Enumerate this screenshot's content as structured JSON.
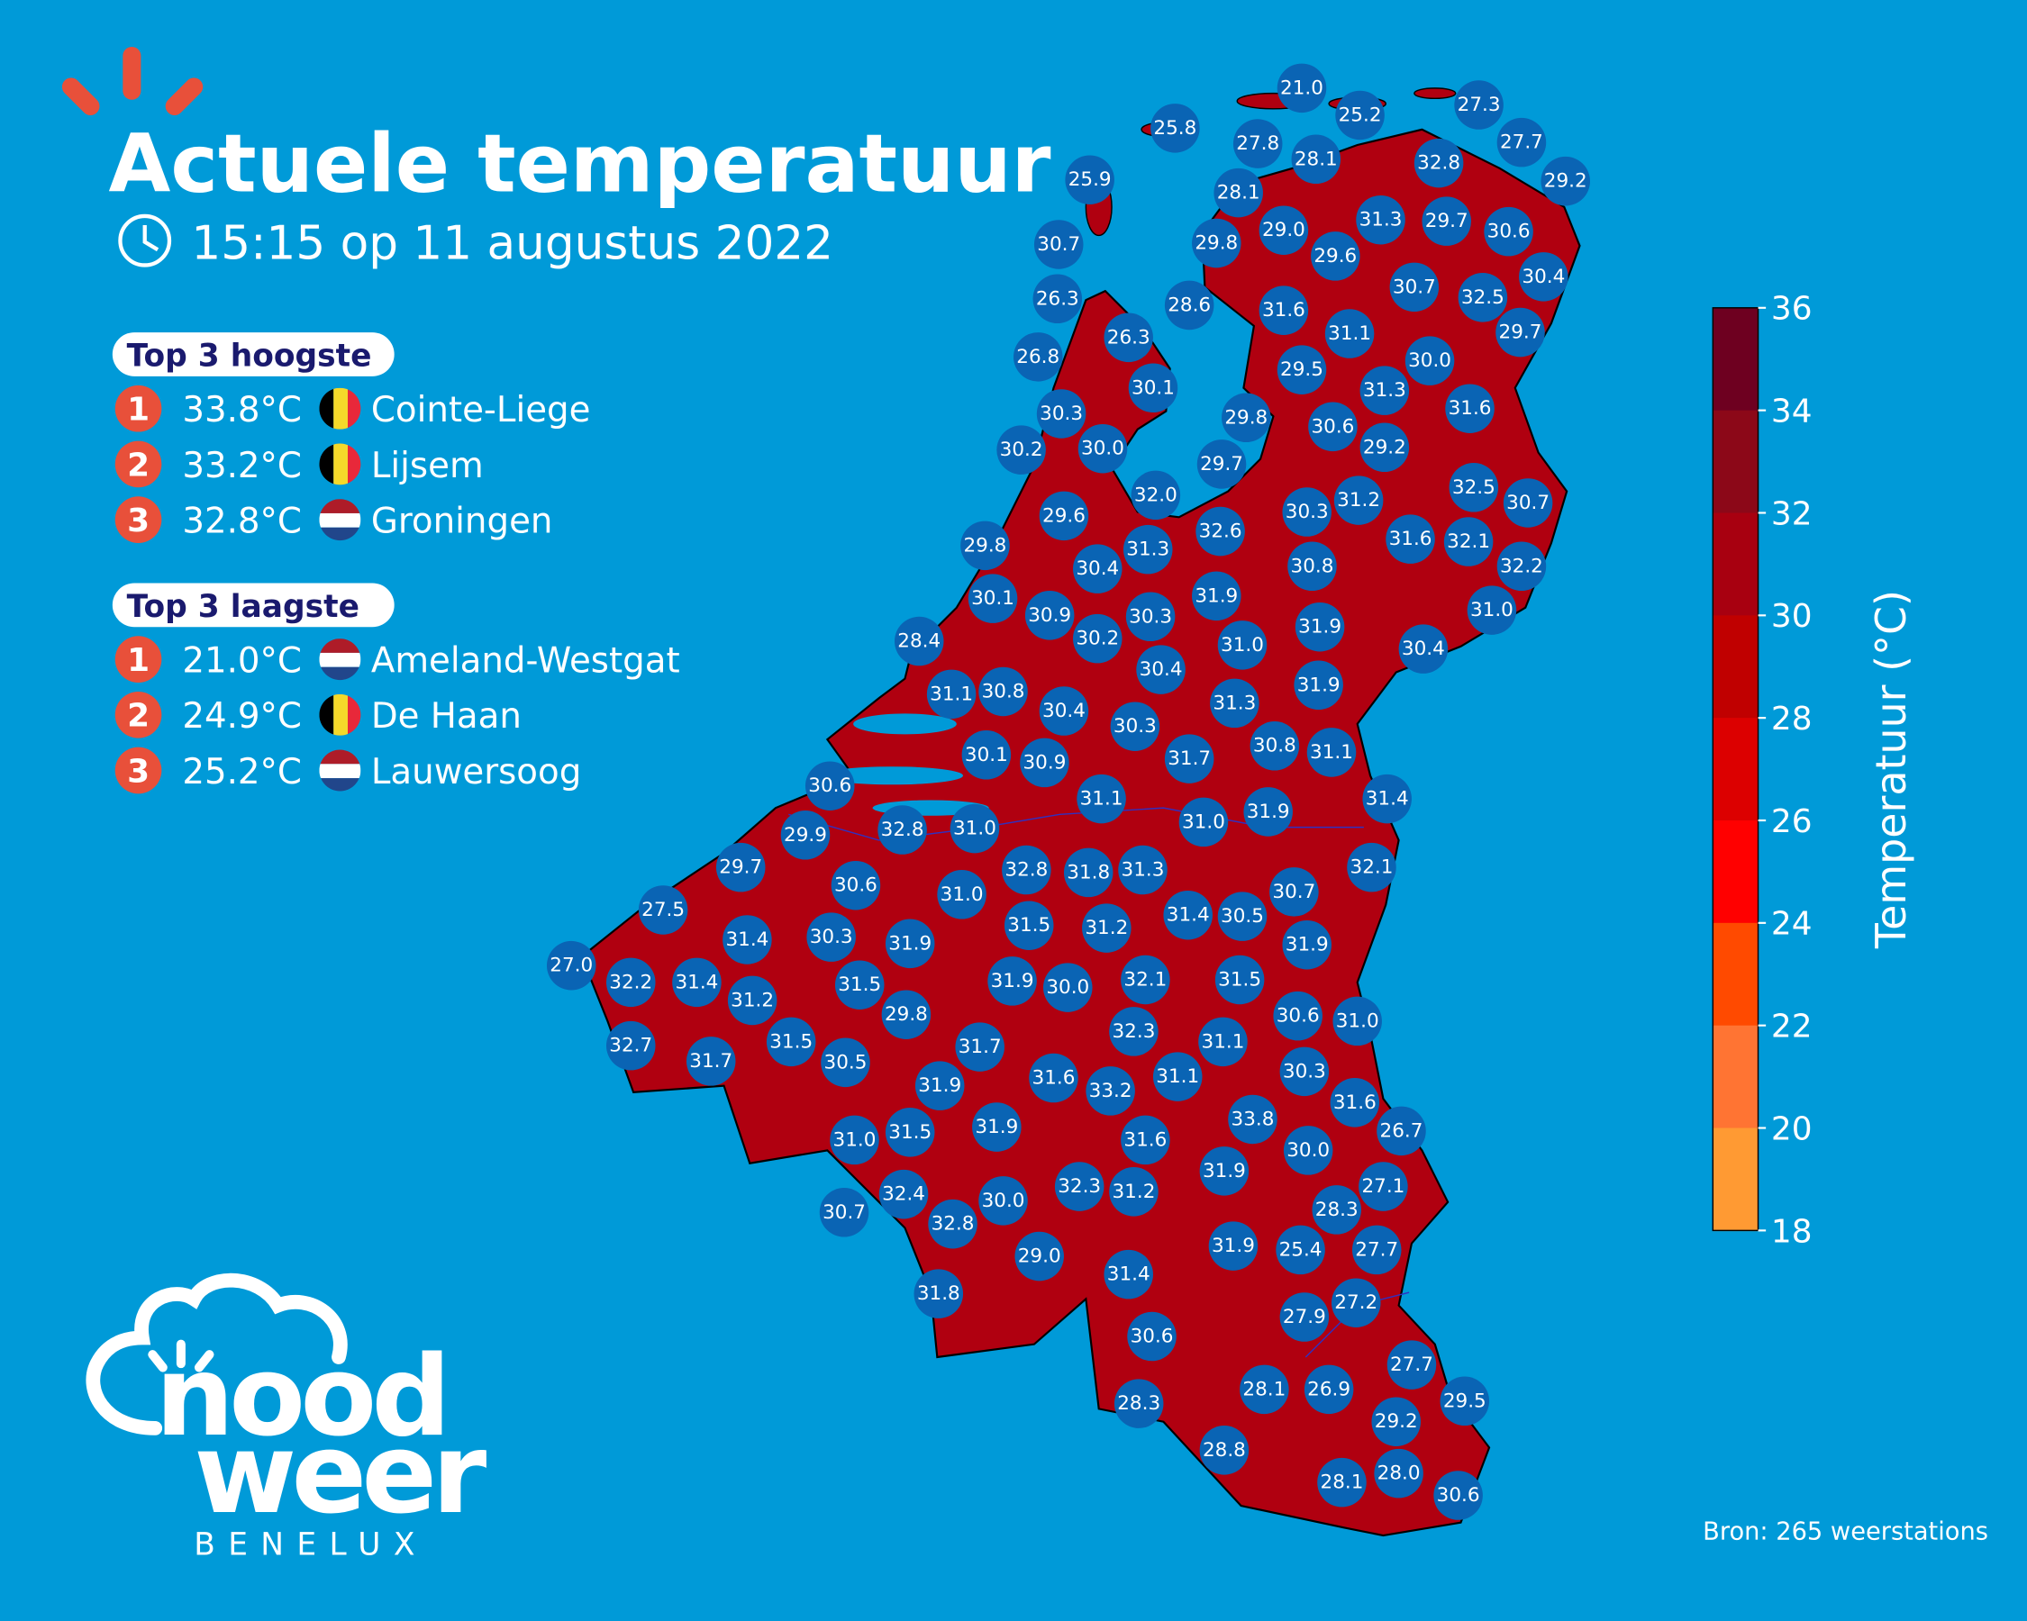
{
  "header": {
    "title": "Actuele temperatuur",
    "timestamp": "15:15 op 11 augustus 2022"
  },
  "top_high": {
    "heading": "Top 3 hoogste",
    "items": [
      {
        "rank": "1",
        "temp": "33.8°C",
        "country": "BE",
        "station": "Cointe-Liege"
      },
      {
        "rank": "2",
        "temp": "33.2°C",
        "country": "BE",
        "station": "Lijsem"
      },
      {
        "rank": "3",
        "temp": "32.8°C",
        "country": "NL",
        "station": "Groningen"
      }
    ]
  },
  "top_low": {
    "heading": "Top 3 laagste",
    "items": [
      {
        "rank": "1",
        "temp": "21.0°C",
        "country": "NL",
        "station": "Ameland-Westgat"
      },
      {
        "rank": "2",
        "temp": "24.9°C",
        "country": "BE",
        "station": "De Haan"
      },
      {
        "rank": "3",
        "temp": "25.2°C",
        "country": "NL",
        "station": "Lauwersoog"
      }
    ]
  },
  "colorbar": {
    "title": "Temperatuur (°C)",
    "ticks": [
      "36",
      "34",
      "32",
      "30",
      "28",
      "26",
      "24",
      "22",
      "20",
      "18"
    ],
    "colors": [
      "#6e0020",
      "#8c0818",
      "#a80010",
      "#c00000",
      "#dc0000",
      "#ff0000",
      "#ff4a00",
      "#ff7433",
      "#ff9a33"
    ]
  },
  "source": "Bron: 265 weerstations",
  "logo": {
    "line1": "nood",
    "line2": "weer",
    "line3": "BENELUX"
  },
  "colors": {
    "background": "#009ad8",
    "station_marker": "#0a64b4",
    "rank_badge": "#e8503a",
    "heading_text": "#1a1a6e",
    "land": "#b00010"
  },
  "stations": [
    "21.0",
    "25.2",
    "27.3",
    "25.8",
    "27.8",
    "28.1",
    "32.8",
    "27.7",
    "29.2",
    "25.9",
    "28.1",
    "29.0",
    "31.3",
    "29.7",
    "30.6",
    "30.7",
    "29.8",
    "29.6",
    "30.7",
    "32.5",
    "30.4",
    "26.3",
    "28.6",
    "31.6",
    "31.1",
    "26.3",
    "29.7",
    "26.8",
    "29.5",
    "30.0",
    "30.1",
    "31.3",
    "31.6",
    "30.3",
    "29.8",
    "30.6",
    "30.2",
    "30.0",
    "29.2",
    "29.7",
    "32.0",
    "30.3",
    "31.2",
    "32.5",
    "30.7",
    "29.6",
    "32.6",
    "29.8",
    "31.3",
    "31.6",
    "32.1",
    "32.2",
    "30.4",
    "30.8",
    "30.1",
    "31.9",
    "30.9",
    "30.3",
    "31.0",
    "31.9",
    "30.2",
    "31.0",
    "28.4",
    "30.4",
    "30.4",
    "31.9",
    "31.1",
    "30.8",
    "30.4",
    "31.3",
    "30.3",
    "30.8",
    "31.1",
    "30.1",
    "30.9",
    "31.7",
    "30.6",
    "31.1",
    "31.4",
    "31.0",
    "31.9",
    "29.9",
    "32.8",
    "31.0",
    "29.7",
    "32.8",
    "31.8",
    "31.3",
    "32.1",
    "30.6",
    "31.0",
    "30.7",
    "27.5",
    "31.4",
    "30.5",
    "31.5",
    "31.2",
    "31.4",
    "30.3",
    "31.9",
    "31.9",
    "27.0",
    "32.2",
    "31.4",
    "31.5",
    "31.9",
    "30.0",
    "32.1",
    "31.5",
    "31.2",
    "29.8",
    "30.6",
    "31.0",
    "32.3",
    "31.1",
    "32.7",
    "31.7",
    "31.5",
    "31.7",
    "30.5",
    "30.3",
    "31.6",
    "31.1",
    "33.2",
    "31.9",
    "33.8",
    "31.6",
    "26.7",
    "31.9",
    "31.5",
    "31.0",
    "31.6",
    "30.0",
    "31.9",
    "27.1",
    "32.3",
    "31.2",
    "32.4",
    "30.0",
    "28.3",
    "30.7",
    "32.8",
    "31.9",
    "25.4",
    "27.7",
    "29.0",
    "31.4",
    "27.2",
    "31.8",
    "27.9",
    "30.6",
    "27.7",
    "28.1",
    "26.9",
    "29.5",
    "28.3",
    "29.2",
    "28.8",
    "28.1",
    "28.0",
    "30.6"
  ]
}
